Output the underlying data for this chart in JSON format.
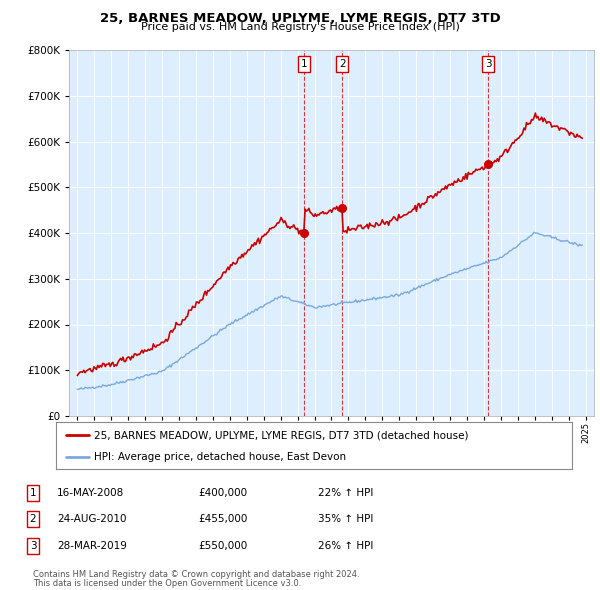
{
  "title": "25, BARNES MEADOW, UPLYME, LYME REGIS, DT7 3TD",
  "subtitle": "Price paid vs. HM Land Registry's House Price Index (HPI)",
  "legend_property": "25, BARNES MEADOW, UPLYME, LYME REGIS, DT7 3TD (detached house)",
  "legend_hpi": "HPI: Average price, detached house, East Devon",
  "footer_line1": "Contains HM Land Registry data © Crown copyright and database right 2024.",
  "footer_line2": "This data is licensed under the Open Government Licence v3.0.",
  "sales": [
    {
      "label": "1",
      "date": "16-MAY-2008",
      "price": "£400,000",
      "pct": "22% ↑ HPI",
      "year": 2008.37,
      "value": 400000
    },
    {
      "label": "2",
      "date": "24-AUG-2010",
      "price": "£455,000",
      "pct": "35% ↑ HPI",
      "year": 2010.64,
      "value": 455000
    },
    {
      "label": "3",
      "date": "28-MAR-2019",
      "price": "£550,000",
      "pct": "26% ↑ HPI",
      "year": 2019.24,
      "value": 550000
    }
  ],
  "property_color": "#cc0000",
  "hpi_color": "#7aaadd",
  "background_plot": "#ddeeff",
  "background_fig": "#ffffff",
  "ylim": [
    0,
    800000
  ],
  "xlim_start": 1994.5,
  "xlim_end": 2025.5
}
